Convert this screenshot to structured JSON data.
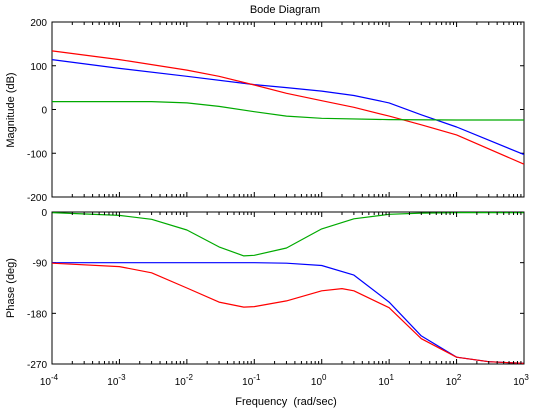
{
  "chart_data": [
    {
      "type": "line",
      "title": "Bode Diagram",
      "ylabel": "Magnitude (dB)",
      "xlabel": "",
      "xscale": "log",
      "xlim": [
        0.0001,
        1000
      ],
      "ylim": [
        -200,
        200
      ],
      "yticks": [
        -200,
        -100,
        0,
        100,
        200
      ],
      "ytick_labels": [
        "-200",
        "-100",
        "0",
        "100",
        "200"
      ],
      "grid": false,
      "series": [
        {
          "color": "#0000ff",
          "x": [
            0.0001,
            0.001,
            0.01,
            0.1,
            0.3,
            1,
            3,
            10,
            30,
            100,
            1000
          ],
          "y": [
            114,
            94,
            76,
            57,
            50,
            42,
            32,
            15,
            -12,
            -40,
            -103
          ]
        },
        {
          "color": "#ff0000",
          "x": [
            0.0001,
            0.001,
            0.01,
            0.03,
            0.1,
            0.3,
            1,
            3,
            10,
            30,
            100,
            1000
          ],
          "y": [
            134,
            114,
            90,
            76,
            56,
            37,
            20,
            5,
            -15,
            -35,
            -58,
            -125
          ]
        },
        {
          "color": "#00aa00",
          "x": [
            0.0001,
            0.001,
            0.003,
            0.01,
            0.03,
            0.1,
            0.3,
            1,
            10,
            100,
            1000
          ],
          "y": [
            18,
            18,
            18,
            15,
            7,
            -5,
            -15,
            -20,
            -23,
            -24,
            -24
          ]
        }
      ]
    },
    {
      "type": "line",
      "title": "",
      "ylabel": "Phase (deg)",
      "xlabel": "Frequency  (rad/sec)",
      "xscale": "log",
      "xlim": [
        0.0001,
        1000
      ],
      "ylim": [
        -270,
        0
      ],
      "yticks": [
        -270,
        -180,
        -90,
        0
      ],
      "ytick_labels": [
        "-270",
        "-180",
        "-90",
        "0"
      ],
      "xticks": [
        0.0001,
        0.001,
        0.01,
        0.1,
        1,
        10,
        100,
        1000
      ],
      "xtick_labels": [
        {
          "base": "10",
          "exp": "-4"
        },
        {
          "base": "10",
          "exp": "-3"
        },
        {
          "base": "10",
          "exp": "-2"
        },
        {
          "base": "10",
          "exp": "-1"
        },
        {
          "base": "10",
          "exp": "0"
        },
        {
          "base": "10",
          "exp": "1"
        },
        {
          "base": "10",
          "exp": "2"
        },
        {
          "base": "10",
          "exp": "3"
        }
      ],
      "grid": false,
      "series": [
        {
          "color": "#00aa00",
          "x": [
            0.0001,
            0.001,
            0.003,
            0.01,
            0.03,
            0.07,
            0.1,
            0.3,
            0.7,
            1,
            3,
            10,
            30,
            100,
            1000
          ],
          "y": [
            -1,
            -6,
            -13,
            -32,
            -62,
            -78,
            -77,
            -64,
            -40,
            -30,
            -12,
            -4,
            -2,
            -1,
            -1
          ]
        },
        {
          "color": "#0000ff",
          "x": [
            0.0001,
            0.001,
            0.01,
            0.1,
            0.3,
            1,
            3,
            10,
            30,
            100,
            300,
            1000
          ],
          "y": [
            -90,
            -90,
            -90,
            -90,
            -91,
            -95,
            -112,
            -160,
            -220,
            -258,
            -266,
            -269
          ]
        },
        {
          "color": "#ff0000",
          "x": [
            0.0001,
            0.001,
            0.003,
            0.01,
            0.03,
            0.07,
            0.1,
            0.3,
            1,
            2,
            3,
            10,
            30,
            100,
            300,
            1000
          ],
          "y": [
            -91,
            -97,
            -108,
            -135,
            -160,
            -169,
            -168,
            -158,
            -140,
            -136,
            -140,
            -170,
            -225,
            -258,
            -266,
            -269
          ]
        }
      ]
    }
  ]
}
